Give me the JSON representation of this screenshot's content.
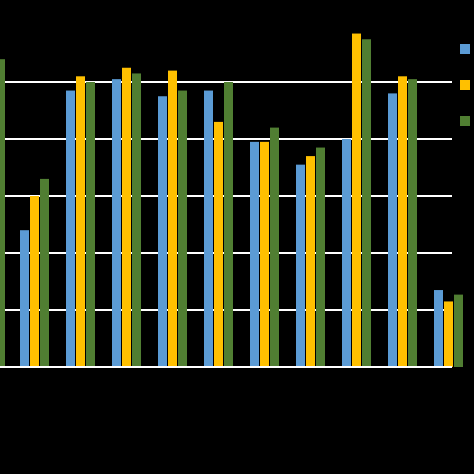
{
  "chart_data": {
    "type": "bar",
    "title": "",
    "xlabel": "",
    "ylabel": "",
    "categories": [
      "",
      "",
      "",
      "",
      "",
      "",
      "",
      "",
      "",
      ""
    ],
    "series": [
      {
        "color": "#5B9BD5",
        "values": [
          2.4,
          4.85,
          5.05,
          4.75,
          4.85,
          3.95,
          3.55,
          4.0,
          4.8,
          1.35
        ]
      },
      {
        "color": "#FFC000",
        "values": [
          3.0,
          5.1,
          5.25,
          5.2,
          4.3,
          3.95,
          3.7,
          5.85,
          5.1,
          1.15
        ]
      },
      {
        "color": "#507E32",
        "values": [
          3.3,
          5.0,
          5.15,
          4.85,
          5.0,
          4.2,
          3.85,
          5.75,
          5.05,
          1.27
        ]
      }
    ],
    "first_bar_partial_value": 5.4,
    "ylim": [
      0,
      6
    ],
    "gridline_values": [
      1,
      2,
      3,
      4,
      5
    ],
    "grid": true,
    "legend_position": "right",
    "colors": {
      "background": "#000000",
      "gridline": "#FFFFFF",
      "axis": "#FFFFFF"
    }
  }
}
